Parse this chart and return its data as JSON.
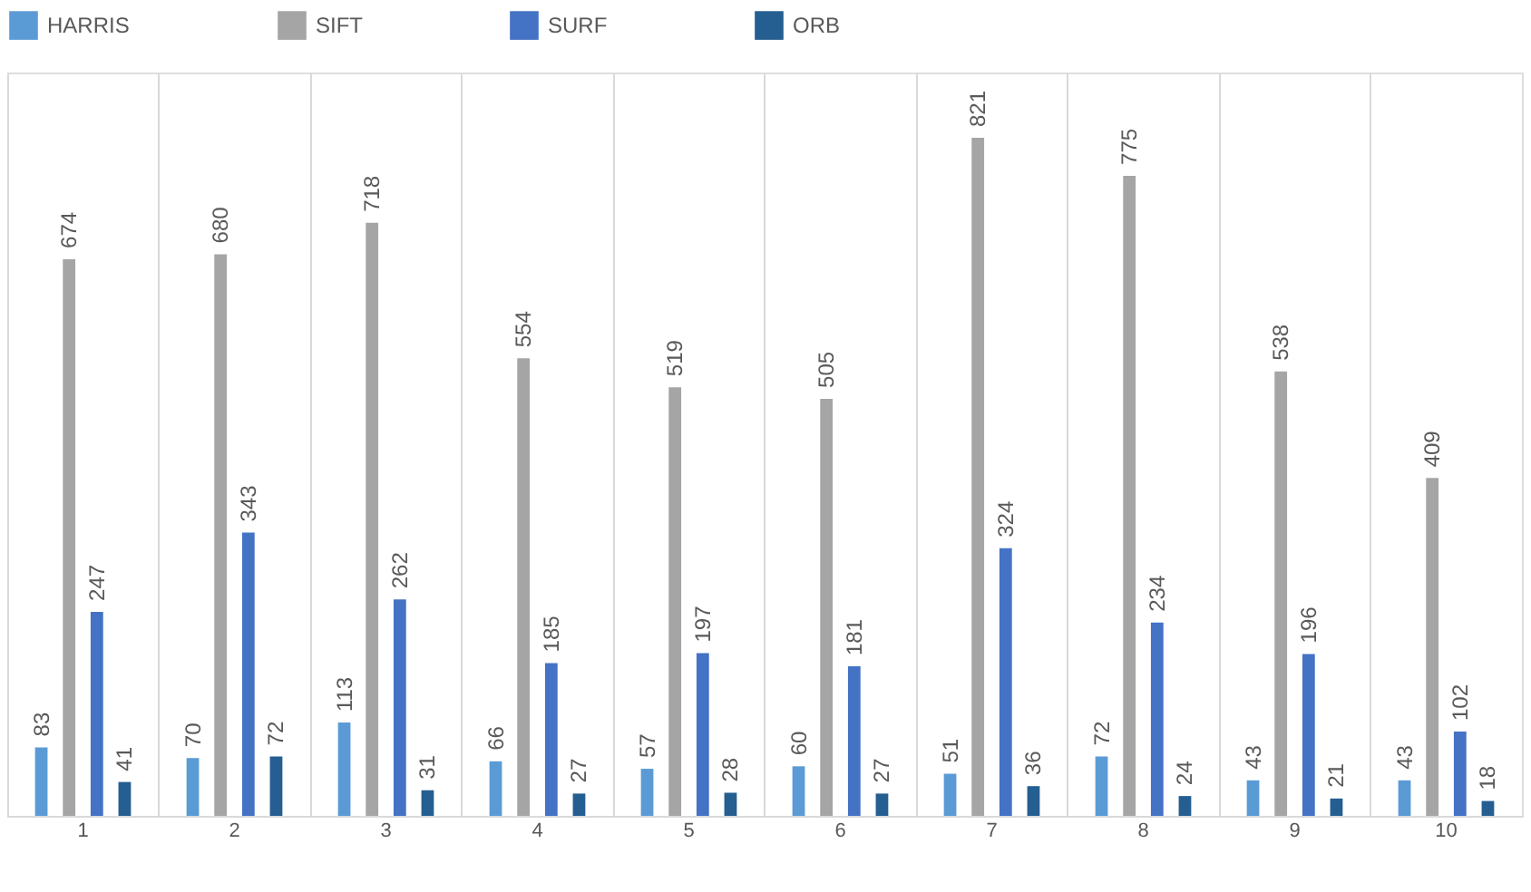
{
  "chart_data": {
    "type": "bar",
    "categories": [
      "1",
      "2",
      "3",
      "4",
      "5",
      "6",
      "7",
      "8",
      "9",
      "10"
    ],
    "series": [
      {
        "name": "HARRIS",
        "color": "#5b9bd5",
        "values": [
          83,
          70,
          113,
          66,
          57,
          60,
          51,
          72,
          43,
          43
        ]
      },
      {
        "name": "SIFT",
        "color": "#a5a5a5",
        "values": [
          674,
          680,
          718,
          554,
          519,
          505,
          821,
          775,
          538,
          409
        ]
      },
      {
        "name": "SURF",
        "color": "#4472c4",
        "values": [
          247,
          343,
          262,
          185,
          197,
          181,
          324,
          234,
          196,
          102
        ]
      },
      {
        "name": "ORB",
        "color": "#255e91",
        "values": [
          41,
          72,
          31,
          27,
          28,
          27,
          36,
          24,
          21,
          18
        ]
      }
    ],
    "data_labels": true,
    "grid": "x",
    "legend": "top left",
    "tick_labels": "x"
  }
}
